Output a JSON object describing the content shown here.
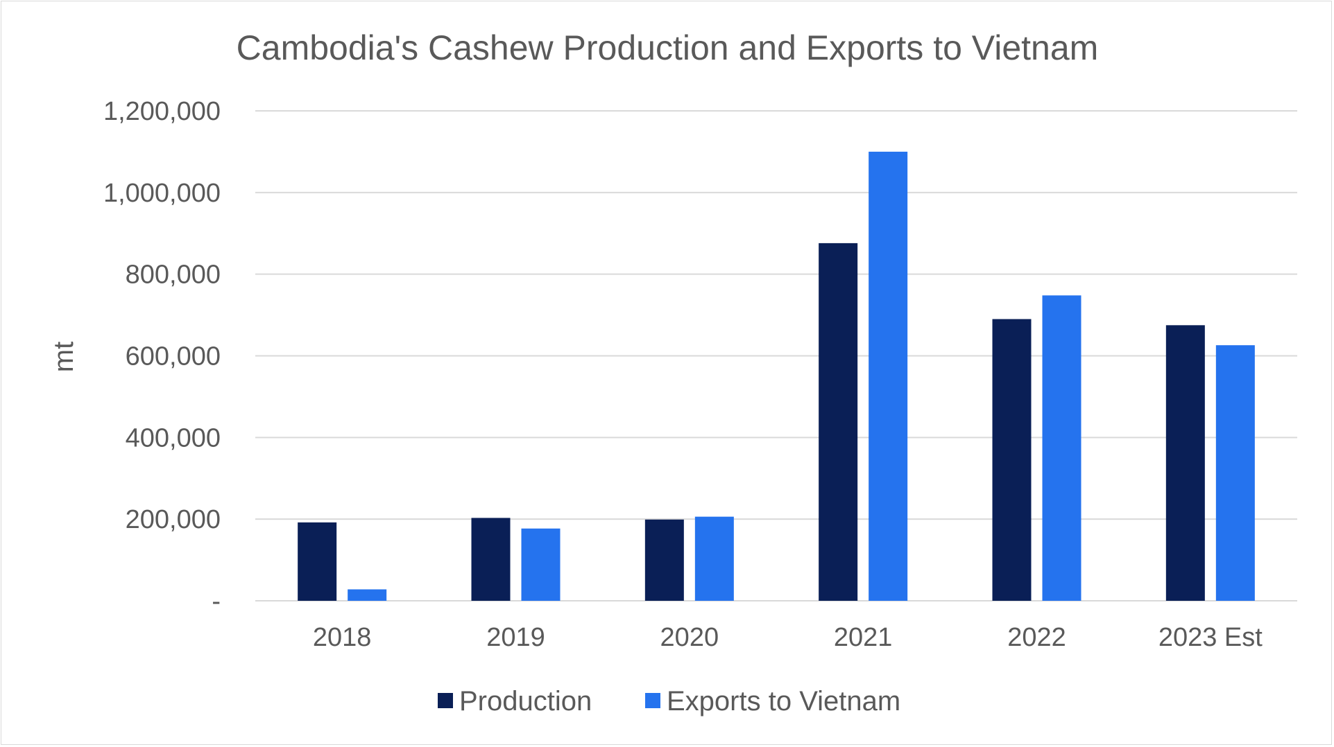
{
  "chart_data": {
    "type": "bar",
    "title": "Cambodia's Cashew Production and Exports to Vietnam",
    "xlabel": "",
    "ylabel": "mt",
    "categories": [
      "2018",
      "2019",
      "2020",
      "2021",
      "2022",
      "2023 Est"
    ],
    "series": [
      {
        "name": "Production",
        "color": "#0a1f56",
        "values": [
          192000,
          203000,
          199000,
          876000,
          690000,
          675000
        ]
      },
      {
        "name": "Exports to Vietnam",
        "color": "#2573ee",
        "values": [
          28000,
          177000,
          206000,
          1100000,
          748000,
          626000
        ]
      }
    ],
    "ylim": [
      0,
      1200000
    ],
    "yticks": [
      {
        "value": 0,
        "label": "-"
      },
      {
        "value": 200000,
        "label": "200,000"
      },
      {
        "value": 400000,
        "label": "400,000"
      },
      {
        "value": 600000,
        "label": "600,000"
      },
      {
        "value": 800000,
        "label": "800,000"
      },
      {
        "value": 1000000,
        "label": "1,000,000"
      },
      {
        "value": 1200000,
        "label": "1,200,000"
      }
    ],
    "grid": true,
    "legend_position": "bottom"
  }
}
